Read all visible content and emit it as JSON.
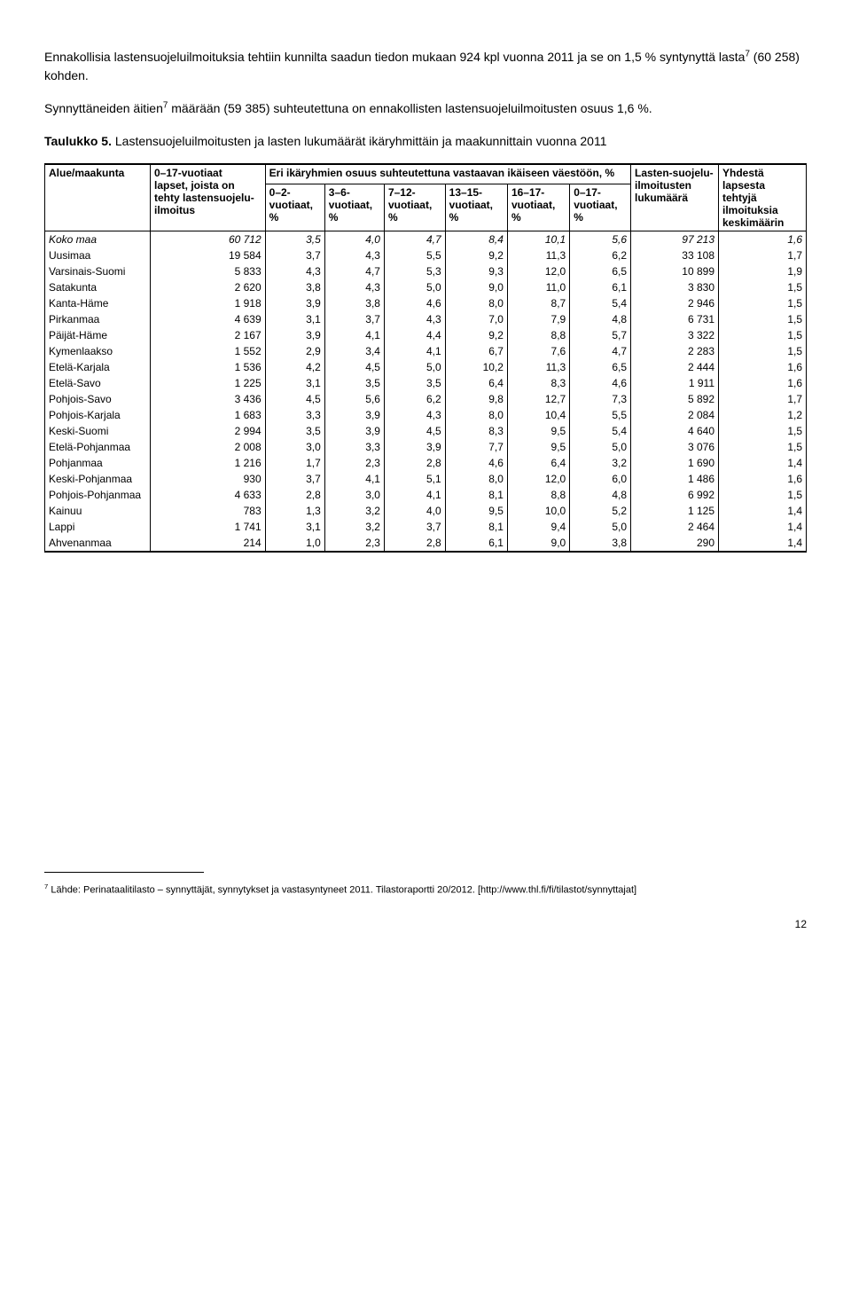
{
  "paragraphs": {
    "p1": "Ennakollisia lastensuojeluilmoituksia tehtiin kunnilta saadun tiedon mukaan 924 kpl vuonna 2011 ja se on 1,5 % syntynyttä lasta",
    "p1_sup": "7",
    "p1_tail": " (60 258) kohden.",
    "p2": "Synnyttäneiden äitien",
    "p2_sup": "7",
    "p2_tail": " määrään (59 385) suhteutettuna on ennakollisten lastensuojeluilmoitusten osuus 1,6 %.",
    "title_bold": "Taulukko 5.",
    "title_rest": " Lastensuojeluilmoitusten ja lasten lukumäärät ikäryhmittäin ja maakunnittain vuonna 2011"
  },
  "table": {
    "header": {
      "col0": "Alue/maakunta",
      "col1_line1": "0–17-vuotiaat",
      "col1_line2": "lapset, joista on tehty lastensuojelu-ilmoitus",
      "group": "Eri ikäryhmien osuus suhteutettuna vastaavan ikäiseen väestöön, %",
      "sub": [
        "0–2-vuotiaat, %",
        "3–6-vuotiaat, %",
        "7–12-vuotiaat, %",
        "13–15-vuotiaat, %",
        "16–17-vuotiaat, %",
        "0–17-vuotiaat, %"
      ],
      "lasten": "Lasten-suojelu-ilmoitusten lukumäärä",
      "yhdest": "Yhdestä lapsesta tehtyjä ilmoituksia keskimäärin"
    },
    "rows": [
      {
        "region": "Koko maa",
        "n": "60 712",
        "v": [
          "3,5",
          "4,0",
          "4,7",
          "8,4",
          "10,1",
          "5,6"
        ],
        "l": "97 213",
        "y": "1,6",
        "bold": true
      },
      {
        "region": "Uusimaa",
        "n": "19 584",
        "v": [
          "3,7",
          "4,3",
          "5,5",
          "9,2",
          "11,3",
          "6,2"
        ],
        "l": "33 108",
        "y": "1,7"
      },
      {
        "region": "Varsinais-Suomi",
        "n": "5 833",
        "v": [
          "4,3",
          "4,7",
          "5,3",
          "9,3",
          "12,0",
          "6,5"
        ],
        "l": "10 899",
        "y": "1,9"
      },
      {
        "region": "Satakunta",
        "n": "2 620",
        "v": [
          "3,8",
          "4,3",
          "5,0",
          "9,0",
          "11,0",
          "6,1"
        ],
        "l": "3 830",
        "y": "1,5"
      },
      {
        "region": "Kanta-Häme",
        "n": "1 918",
        "v": [
          "3,9",
          "3,8",
          "4,6",
          "8,0",
          "8,7",
          "5,4"
        ],
        "l": "2 946",
        "y": "1,5"
      },
      {
        "region": "Pirkanmaa",
        "n": "4 639",
        "v": [
          "3,1",
          "3,7",
          "4,3",
          "7,0",
          "7,9",
          "4,8"
        ],
        "l": "6 731",
        "y": "1,5"
      },
      {
        "region": "Päijät-Häme",
        "n": "2 167",
        "v": [
          "3,9",
          "4,1",
          "4,4",
          "9,2",
          "8,8",
          "5,7"
        ],
        "l": "3 322",
        "y": "1,5"
      },
      {
        "region": "Kymenlaakso",
        "n": "1 552",
        "v": [
          "2,9",
          "3,4",
          "4,1",
          "6,7",
          "7,6",
          "4,7"
        ],
        "l": "2 283",
        "y": "1,5"
      },
      {
        "region": "Etelä-Karjala",
        "n": "1 536",
        "v": [
          "4,2",
          "4,5",
          "5,0",
          "10,2",
          "11,3",
          "6,5"
        ],
        "l": "2 444",
        "y": "1,6"
      },
      {
        "region": "Etelä-Savo",
        "n": "1 225",
        "v": [
          "3,1",
          "3,5",
          "3,5",
          "6,4",
          "8,3",
          "4,6"
        ],
        "l": "1 911",
        "y": "1,6"
      },
      {
        "region": "Pohjois-Savo",
        "n": "3 436",
        "v": [
          "4,5",
          "5,6",
          "6,2",
          "9,8",
          "12,7",
          "7,3"
        ],
        "l": "5 892",
        "y": "1,7"
      },
      {
        "region": "Pohjois-Karjala",
        "n": "1 683",
        "v": [
          "3,3",
          "3,9",
          "4,3",
          "8,0",
          "10,4",
          "5,5"
        ],
        "l": "2 084",
        "y": "1,2"
      },
      {
        "region": "Keski-Suomi",
        "n": "2 994",
        "v": [
          "3,5",
          "3,9",
          "4,5",
          "8,3",
          "9,5",
          "5,4"
        ],
        "l": "4 640",
        "y": "1,5"
      },
      {
        "region": "Etelä-Pohjanmaa",
        "n": "2 008",
        "v": [
          "3,0",
          "3,3",
          "3,9",
          "7,7",
          "9,5",
          "5,0"
        ],
        "l": "3 076",
        "y": "1,5"
      },
      {
        "region": "Pohjanmaa",
        "n": "1 216",
        "v": [
          "1,7",
          "2,3",
          "2,8",
          "4,6",
          "6,4",
          "3,2"
        ],
        "l": "1 690",
        "y": "1,4"
      },
      {
        "region": "Keski-Pohjanmaa",
        "n": "930",
        "v": [
          "3,7",
          "4,1",
          "5,1",
          "8,0",
          "12,0",
          "6,0"
        ],
        "l": "1 486",
        "y": "1,6"
      },
      {
        "region": "Pohjois-Pohjanmaa",
        "n": "4 633",
        "v": [
          "2,8",
          "3,0",
          "4,1",
          "8,1",
          "8,8",
          "4,8"
        ],
        "l": "6 992",
        "y": "1,5"
      },
      {
        "region": "Kainuu",
        "n": "783",
        "v": [
          "1,3",
          "3,2",
          "4,0",
          "9,5",
          "10,0",
          "5,2"
        ],
        "l": "1 125",
        "y": "1,4"
      },
      {
        "region": "Lappi",
        "n": "1 741",
        "v": [
          "3,1",
          "3,2",
          "3,7",
          "8,1",
          "9,4",
          "5,0"
        ],
        "l": "2 464",
        "y": "1,4"
      },
      {
        "region": "Ahvenanmaa",
        "n": "214",
        "v": [
          "1,0",
          "2,3",
          "2,8",
          "6,1",
          "9,0",
          "3,8"
        ],
        "l": "290",
        "y": "1,4"
      }
    ]
  },
  "footnote": {
    "sup": "7",
    "text": " Lähde: Perinataalitilasto – synnyttäjät, synnytykset ja vastasyntyneet 2011. Tilastoraportti 20/2012. [http://www.thl.fi/fi/tilastot/synnyttajat]"
  },
  "page": "12"
}
